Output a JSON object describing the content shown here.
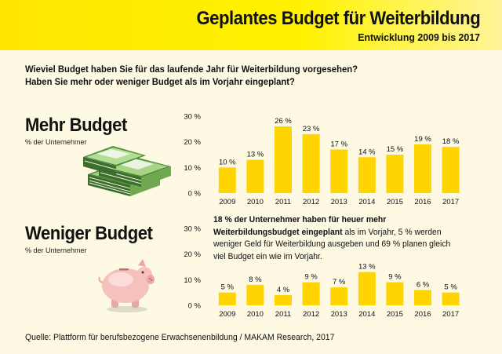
{
  "header": {
    "title": "Geplantes Budget für Weiterbildung",
    "subtitle": "Entwicklung 2009 bis 2017"
  },
  "question": {
    "line1": "Wieviel Budget haben Sie für das laufende Jahr für Weiterbildung vorgesehen?",
    "line2": "Haben Sie mehr oder weniger Budget als im Vorjahr eingeplant?"
  },
  "sections": {
    "more": {
      "title": "Mehr Budget",
      "subtitle": "% der Unternehmer"
    },
    "less": {
      "title": "Weniger Budget",
      "subtitle": "% der Unternehmer"
    }
  },
  "description": {
    "bold": "18 % der Unternehmer haben für heuer mehr Weiterbildungsbudget eingeplant",
    "rest": " als im Vorjahr, 5 % werden weniger Geld für Weiterbildung ausgeben und 69 % planen gleich viel Budget ein wie im Vorjahr."
  },
  "source": "Quelle: Plattform für berufsbezogene Erwachsenenbildung / MAKAM Research, 2017",
  "colors": {
    "bar": "#ffd400",
    "header": "#fff200",
    "background": "#fdf9e3"
  },
  "icons": {
    "more": "money-stack-icon",
    "less": "piggy-bank-icon"
  },
  "chart_data": [
    {
      "type": "bar",
      "title": "Mehr Budget",
      "ylabel": "% der Unternehmer",
      "categories": [
        "2009",
        "2010",
        "2011",
        "2012",
        "2013",
        "2014",
        "2015",
        "2016",
        "2017"
      ],
      "values": [
        10,
        13,
        26,
        23,
        17,
        14,
        15,
        19,
        18
      ],
      "data_labels": [
        "10 %",
        "13 %",
        "26 %",
        "23 %",
        "17 %",
        "14 %",
        "15 %",
        "19 %",
        "18 %"
      ],
      "yticks": [
        0,
        10,
        20,
        30
      ],
      "ytick_labels": [
        "0 %",
        "10 %",
        "20 %",
        "30 %"
      ],
      "ylim": [
        0,
        30
      ]
    },
    {
      "type": "bar",
      "title": "Weniger Budget",
      "ylabel": "% der Unternehmer",
      "categories": [
        "2009",
        "2010",
        "2011",
        "2012",
        "2013",
        "2014",
        "2015",
        "2016",
        "2017"
      ],
      "values": [
        5,
        8,
        4,
        9,
        7,
        13,
        9,
        6,
        5
      ],
      "data_labels": [
        "5 %",
        "8 %",
        "4 %",
        "9 %",
        "7 %",
        "13 %",
        "9 %",
        "6 %",
        "5 %"
      ],
      "yticks": [
        0,
        10,
        20,
        30
      ],
      "ytick_labels": [
        "0 %",
        "10 %",
        "20 %",
        "30 %"
      ],
      "ylim": [
        0,
        30
      ]
    }
  ]
}
